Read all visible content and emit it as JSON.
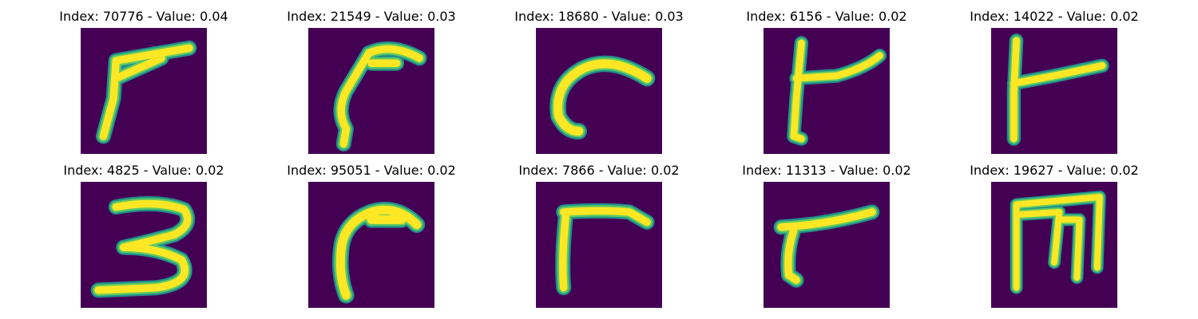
{
  "chart_data": {
    "type": "heatmap",
    "colormap": "viridis",
    "colors": {
      "background": "#440154",
      "stroke_core": "#fde725",
      "stroke_mid": "#5ec962",
      "stroke_edge": "#21918c"
    },
    "grid": false,
    "layout": "2 rows x 5 columns of image panels",
    "panels": [
      {
        "title": "Index: 70776 - Value: 0.04",
        "index": 70776,
        "value": 0.04,
        "glyph": "narrow 7-like stroke"
      },
      {
        "title": "Index: 21549 - Value: 0.03",
        "index": 21549,
        "value": 0.03,
        "glyph": "curved hook stroke"
      },
      {
        "title": "Index: 18680 - Value: 0.03",
        "index": 18680,
        "value": 0.03,
        "glyph": "curved C-like stroke"
      },
      {
        "title": "Index: 6156 - Value: 0.02",
        "index": 6156,
        "value": 0.02,
        "glyph": "t-like stroke"
      },
      {
        "title": "Index: 14022 - Value: 0.02",
        "index": 14022,
        "value": 0.02,
        "glyph": "vertical line with horizontal branch"
      },
      {
        "title": "Index: 4825 - Value: 0.02",
        "index": 4825,
        "value": 0.02,
        "glyph": "digit 3"
      },
      {
        "title": "Index: 95051 - Value: 0.02",
        "index": 95051,
        "value": 0.02,
        "glyph": "curved hook stroke"
      },
      {
        "title": "Index: 7866 - Value: 0.02",
        "index": 7866,
        "value": 0.02,
        "glyph": "r-like stroke"
      },
      {
        "title": "Index: 11313 - Value: 0.02",
        "index": 11313,
        "value": 0.02,
        "glyph": "r-like stroke"
      },
      {
        "title": "Index: 19627 - Value: 0.02",
        "index": 19627,
        "value": 0.02,
        "glyph": "rotated m-like stroke"
      }
    ]
  }
}
